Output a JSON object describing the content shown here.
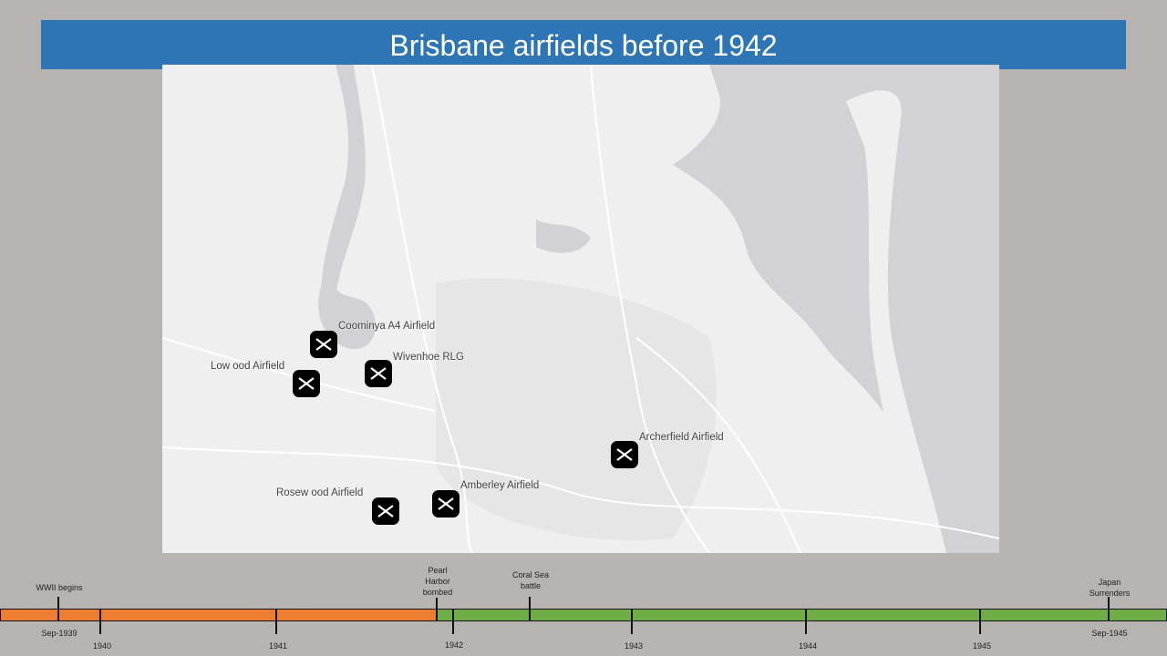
{
  "title": "Brisbane airfields before 1942",
  "colors": {
    "title_bar": "#2e75b6",
    "before": "#ed7d31",
    "after": "#70ad47",
    "water": "#d2d2d6",
    "land": "#efefef"
  },
  "airfields": [
    {
      "name": "Coominya A4 Airfield",
      "icon": "airfield-icon"
    },
    {
      "name": "Low ood Airfield",
      "icon": "airfield-icon"
    },
    {
      "name": "Wivenhoe RLG",
      "icon": "airfield-icon"
    },
    {
      "name": "Archerfield Airfield",
      "icon": "airfield-icon"
    },
    {
      "name": "Rosew ood Airfield",
      "icon": "airfield-icon"
    },
    {
      "name": "Amberley Airfield",
      "icon": "airfield-icon"
    }
  ],
  "timeline": {
    "years": [
      "1940",
      "1941",
      "1942",
      "1943",
      "1944",
      "1945"
    ],
    "events": [
      {
        "label": "WWII begins",
        "date": "Sep-1939"
      },
      {
        "label": "Pearl\nHarbor\nbombed"
      },
      {
        "label": "Coral Sea\nbattle"
      },
      {
        "label": "Japan\nSurrenders",
        "date": "Sep-1945"
      }
    ]
  }
}
